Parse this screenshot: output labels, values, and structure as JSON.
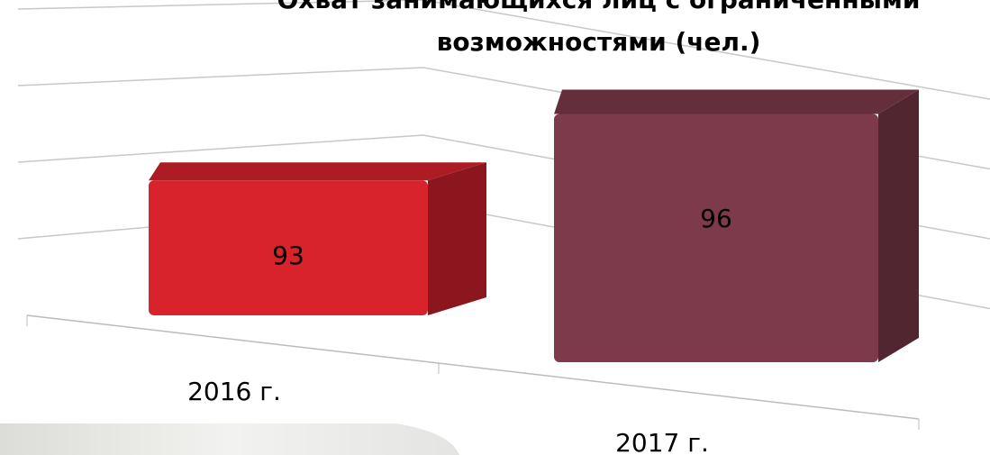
{
  "chart_data": {
    "type": "bar3d",
    "title": "Охват занимающихся лиц с ограниченными возможностями (чел.)",
    "categories": [
      "2016 г.",
      "2017 г."
    ],
    "values": [
      93,
      96
    ],
    "colors": [
      "#d8222c",
      "#7d3a4b"
    ],
    "ylim": [
      0,
      100
    ],
    "yticks": [
      0,
      25,
      50,
      75,
      100
    ],
    "grid": true
  }
}
